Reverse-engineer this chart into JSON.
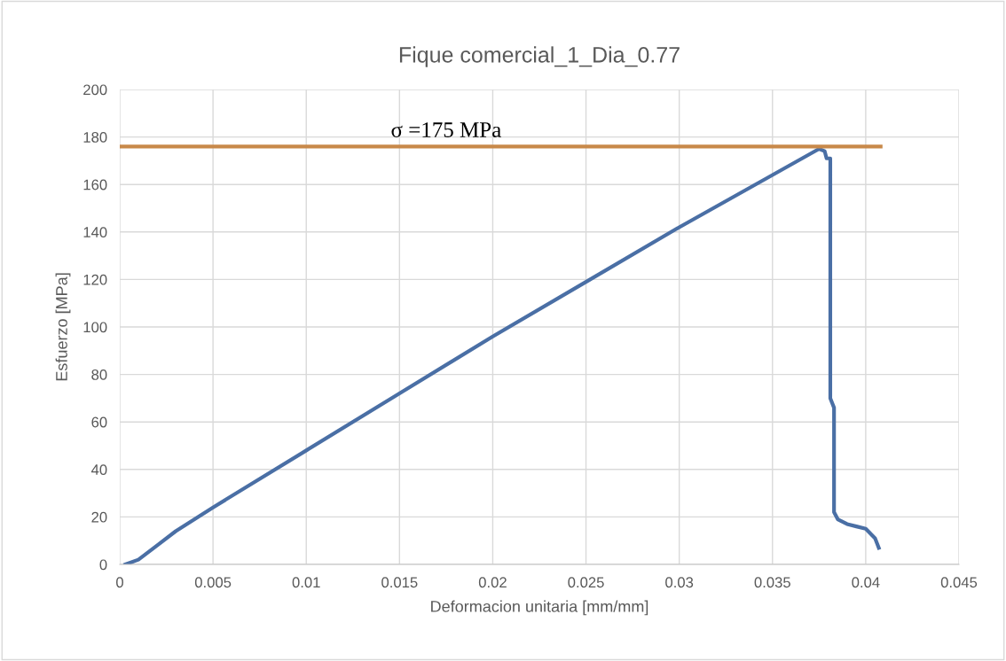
{
  "chart_data": {
    "type": "line",
    "title": "Fique comercial_1_Dia_0.77",
    "xlabel": "Deformacion unitaria [mm/mm]",
    "ylabel": "Esfuerzo [MPa]",
    "series": [
      {
        "color": "#4a6fa5",
        "x": [
          0.0003,
          0.001,
          0.002,
          0.003,
          0.005,
          0.01,
          0.015,
          0.02,
          0.025,
          0.03,
          0.035,
          0.0375,
          0.0378,
          0.0379,
          0.0381,
          0.0381,
          0.0381,
          0.0383,
          0.0383,
          0.0385,
          0.039,
          0.0395,
          0.04,
          0.0405,
          0.0407
        ],
        "values": [
          0,
          2,
          8,
          14,
          24,
          48,
          72,
          96,
          119,
          142,
          164,
          175,
          174,
          171,
          171,
          125,
          70,
          66,
          22,
          19,
          17,
          16,
          15,
          11,
          7
        ]
      },
      {
        "color": "#c8894a",
        "x": [
          0,
          0.0408
        ],
        "values": [
          176,
          176
        ]
      }
    ],
    "annotations": [
      {
        "text": "σ =175 MPa",
        "x": 0.0175,
        "y": 176
      }
    ],
    "xlim": [
      0,
      0.045
    ],
    "xticks": [
      0,
      0.005,
      0.01,
      0.015,
      0.02,
      0.025,
      0.03,
      0.035,
      0.04,
      0.045
    ],
    "ylim": [
      0,
      200
    ],
    "yticks": [
      0,
      20,
      40,
      60,
      80,
      100,
      120,
      140,
      160,
      180,
      200
    ],
    "grid": true,
    "legend": false,
    "marker": "none",
    "line_style": "solid"
  }
}
